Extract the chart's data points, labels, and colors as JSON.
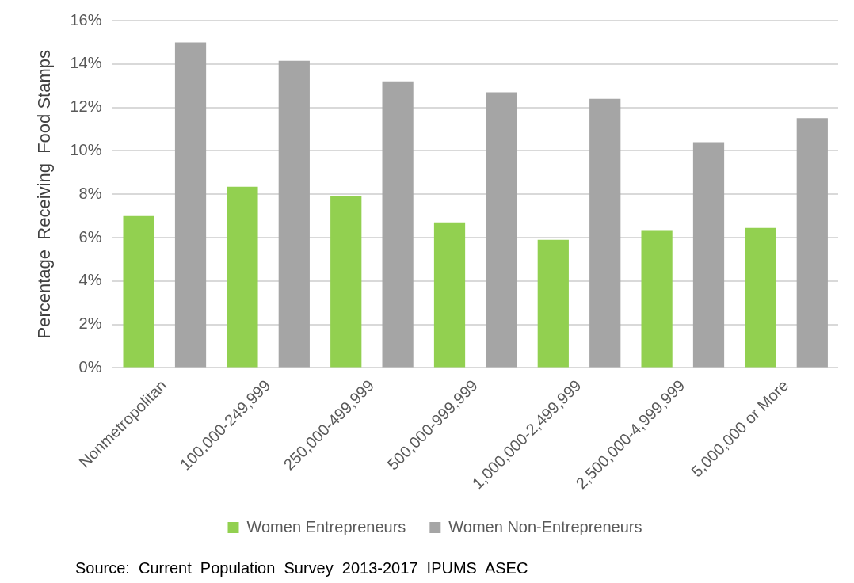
{
  "chart_data": {
    "type": "bar",
    "ylabel": "Percentage  Receiving  Food Stamps",
    "categories": [
      "Nonmetropolitan",
      "100,000-249,999",
      "250,000-499,999",
      "500,000-999,999",
      "1,000,000-2,499,999",
      "2,500,000-4,999,999",
      "5,000,000 or More"
    ],
    "series": [
      {
        "name": "Women Entrepreneurs",
        "color": "#92d050",
        "values": [
          7.0,
          8.35,
          7.9,
          6.7,
          5.9,
          6.35,
          6.45
        ]
      },
      {
        "name": "Women Non-Entrepreneurs",
        "color": "#a5a5a5",
        "values": [
          15.0,
          14.15,
          13.2,
          12.7,
          12.4,
          10.4,
          11.5
        ]
      }
    ],
    "ylim": [
      0,
      16
    ],
    "yticks": [
      {
        "value": 0,
        "label": "0%"
      },
      {
        "value": 2,
        "label": "2%"
      },
      {
        "value": 4,
        "label": "4%"
      },
      {
        "value": 6,
        "label": "6%"
      },
      {
        "value": 8,
        "label": "8%"
      },
      {
        "value": 10,
        "label": "10%"
      },
      {
        "value": 12,
        "label": "12%"
      },
      {
        "value": 14,
        "label": "14%"
      },
      {
        "value": 16,
        "label": "16%"
      }
    ],
    "grid": "y",
    "legend": "bottom",
    "annotations": [
      "Source:  Current  Population  Survey  2013-2017  IPUMS  ASEC"
    ]
  }
}
